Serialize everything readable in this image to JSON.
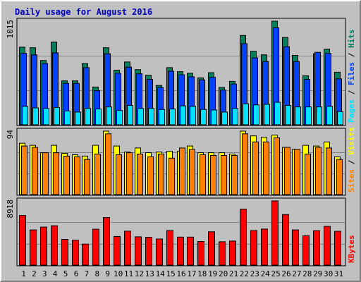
{
  "chart_data": {
    "type": "bar",
    "title": "Daily usage for August 2016",
    "categories": [
      "1",
      "2",
      "3",
      "4",
      "5",
      "6",
      "7",
      "8",
      "9",
      "10",
      "11",
      "12",
      "13",
      "14",
      "15",
      "16",
      "17",
      "18",
      "19",
      "20",
      "21",
      "22",
      "23",
      "24",
      "25",
      "26",
      "27",
      "28",
      "29",
      "30",
      "31"
    ],
    "weekend_days": [
      "6",
      "7",
      "13",
      "14",
      "20",
      "21",
      "27",
      "28"
    ],
    "colors": {
      "hits": "#00805c",
      "files": "#0040ff",
      "pages": "#00e0ff",
      "visits": "#ffff00",
      "sites": "#ff8000",
      "kbytes": "#ff0000",
      "weekday_label": "#000000",
      "weekend_label": "#00805c"
    },
    "panels": [
      {
        "id": "hits-files-pages",
        "max_label": "1015",
        "ylim": [
          0,
          1015
        ],
        "axis_title": [
          {
            "text": "Pages",
            "color": "#00e0ff"
          },
          {
            "text": " / ",
            "color": "#000000"
          },
          {
            "text": "Files",
            "color": "#0040ff"
          },
          {
            "text": " / ",
            "color": "#000000"
          },
          {
            "text": "Hits",
            "color": "#00805c"
          }
        ],
        "series": [
          {
            "name": "Hits",
            "key": "hits",
            "values": [
              760,
              755,
              630,
              810,
              430,
              430,
              600,
              370,
              755,
              535,
              615,
              540,
              485,
              385,
              560,
              520,
              505,
              460,
              510,
              365,
              425,
              875,
              720,
              685,
              1015,
              855,
              680,
              480,
              695,
              740,
              515
            ]
          },
          {
            "name": "Files",
            "key": "files",
            "values": [
              700,
              685,
              600,
              705,
              405,
              405,
              560,
              335,
              695,
              505,
              565,
              500,
              445,
              365,
              525,
              490,
              470,
              440,
              465,
              340,
              400,
              795,
              655,
              620,
              950,
              765,
              620,
              445,
              710,
              700,
              450
            ]
          },
          {
            "name": "Pages",
            "key": "pages",
            "values": [
              180,
              165,
              160,
              170,
              135,
              125,
              160,
              155,
              175,
              140,
              190,
              160,
              160,
              150,
              155,
              185,
              180,
              150,
              145,
              125,
              160,
              205,
              195,
              200,
              220,
              190,
              175,
              175,
              175,
              180,
              130
            ]
          }
        ]
      },
      {
        "id": "visits-sites",
        "max_label": "94",
        "ylim": [
          0,
          94
        ],
        "axis_title": [
          {
            "text": "Sites",
            "color": "#ff8000"
          },
          {
            "text": " / ",
            "color": "#000000"
          },
          {
            "text": "Visits",
            "color": "#ffff00"
          }
        ],
        "series": [
          {
            "name": "Visits",
            "key": "visits",
            "values": [
              76,
              73,
              62,
              73,
              61,
              59,
              57,
              73,
              94,
              72,
              63,
              69,
              62,
              63,
              64,
              64,
              72,
              62,
              62,
              62,
              60,
              94,
              87,
              85,
              88,
              70,
              67,
              73,
              72,
              78,
              56
            ]
          },
          {
            "name": "Sites",
            "key": "sites",
            "values": [
              72,
              70,
              62,
              62,
              57,
              56,
              52,
              60,
              90,
              59,
              62,
              60,
              56,
              60,
              54,
              69,
              67,
              59,
              58,
              58,
              58,
              90,
              78,
              78,
              84,
              70,
              67,
              60,
              70,
              69,
              52
            ]
          }
        ]
      },
      {
        "id": "kbytes",
        "max_label": "8918",
        "ylim": [
          0,
          8918
        ],
        "axis_title": [
          {
            "text": "KBytes",
            "color": "#ff0000"
          }
        ],
        "series": [
          {
            "name": "KBytes",
            "key": "kbytes",
            "values": [
              6900,
              4890,
              5280,
              5470,
              3580,
              3470,
              2920,
              4990,
              6610,
              3980,
              4710,
              3930,
              3870,
              3630,
              4800,
              3890,
              3890,
              3280,
              4630,
              3240,
              3340,
              7770,
              4800,
              5010,
              8918,
              7030,
              4890,
              4090,
              4780,
              5380,
              4690
            ]
          }
        ]
      }
    ]
  }
}
